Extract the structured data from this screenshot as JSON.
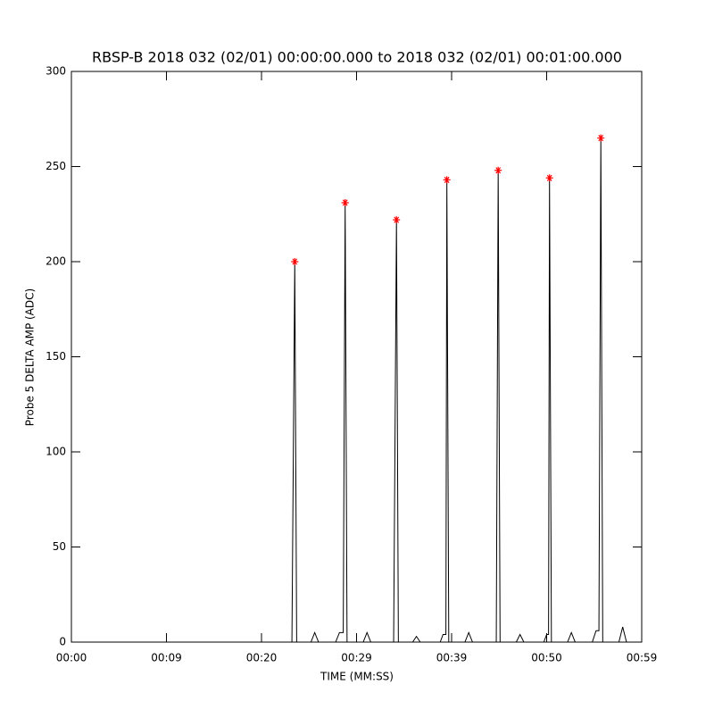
{
  "chart_data": {
    "type": "line",
    "title": "RBSP-B 2018 032 (02/01) 00:00:00.000 to 2018 032 (02/01) 00:01:00.000",
    "x_label": "TIME (MM:SS)",
    "y_label": "Probe 5 DELTA AMP (ADC)",
    "xlim": [
      0,
      60
    ],
    "xticks": [
      {
        "value": 0,
        "label": "00:00"
      },
      {
        "value": 10,
        "label": "00:09"
      },
      {
        "value": 20,
        "label": "00:20"
      },
      {
        "value": 30,
        "label": "00:29"
      },
      {
        "value": 40,
        "label": "00:39"
      },
      {
        "value": 50,
        "label": "00:50"
      },
      {
        "value": 60,
        "label": "00:59"
      }
    ],
    "ylim": [
      0,
      300
    ],
    "yticks": [
      0,
      50,
      100,
      150,
      200,
      250,
      300
    ],
    "series": [
      {
        "color": "#000000",
        "x": [
          0,
          23.2,
          23.5,
          23.7,
          25.2,
          25.6,
          26.0,
          27.8,
          28.2,
          28.6,
          28.8,
          29.0,
          30.7,
          31.1,
          31.5,
          33.9,
          34.2,
          34.4,
          35.9,
          36.3,
          36.7,
          38.8,
          39.1,
          39.4,
          39.5,
          39.7,
          41.4,
          41.8,
          42.2,
          44.7,
          44.9,
          45.1,
          46.8,
          47.2,
          47.6,
          49.7,
          50.0,
          50.2,
          50.3,
          50.5,
          52.2,
          52.6,
          53.0,
          54.8,
          55.2,
          55.5,
          55.7,
          55.9,
          57.6,
          58.0,
          58.4,
          59.0
        ],
        "values": [
          0,
          0,
          200,
          0,
          0,
          5,
          0,
          0,
          5,
          5,
          231,
          0,
          0,
          5,
          0,
          0,
          222,
          0,
          0,
          3,
          0,
          0,
          4,
          4,
          243,
          0,
          0,
          5,
          0,
          0,
          248,
          0,
          0,
          4,
          0,
          0,
          4,
          4,
          244,
          0,
          0,
          5,
          0,
          0,
          6,
          6,
          265,
          0,
          0,
          8,
          0,
          0
        ]
      },
      {
        "color": "#ff0000",
        "marker": "*",
        "x": [
          23.5,
          28.8,
          34.2,
          39.5,
          44.9,
          50.3,
          55.7
        ],
        "values": [
          200,
          231,
          222,
          243,
          248,
          244,
          265
        ]
      }
    ]
  }
}
